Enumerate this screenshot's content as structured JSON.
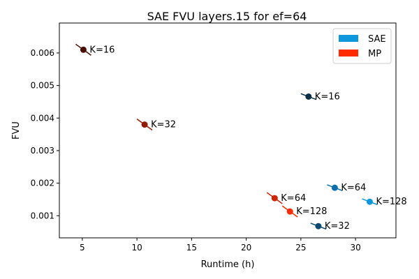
{
  "chart_data": {
    "type": "scatter",
    "title": "SAE FVU layers.15 for ef=64",
    "xlabel": "Runtime (h)",
    "ylabel": "FVU",
    "xlim": [
      2.9,
      33.7
    ],
    "ylim": [
      0.00032,
      0.00692
    ],
    "xticks": [
      5,
      10,
      15,
      20,
      25,
      30
    ],
    "xtick_labels": [
      "5",
      "10",
      "15",
      "20",
      "25",
      "30"
    ],
    "yticks": [
      0.001,
      0.002,
      0.003,
      0.004,
      0.005,
      0.006
    ],
    "ytick_labels": [
      "0.001",
      "0.002",
      "0.003",
      "0.004",
      "0.005",
      "0.006"
    ],
    "grid": false,
    "legend": {
      "position": "top-right",
      "entries": [
        {
          "label": "SAE",
          "color": "#0f97dd"
        },
        {
          "label": "MP",
          "color": "#ff2a00"
        }
      ]
    },
    "series": [
      {
        "name": "SAE",
        "points": [
          {
            "label": "K=16",
            "x": 25.7,
            "y": 0.00466,
            "color": "#082f46"
          },
          {
            "label": "K=32",
            "x": 26.6,
            "y": 0.00068,
            "color": "#0e4a70"
          },
          {
            "label": "K=64",
            "x": 28.1,
            "y": 0.00186,
            "color": "#0a70ae"
          },
          {
            "label": "K=128",
            "x": 31.3,
            "y": 0.00143,
            "color": "#0f97dd"
          }
        ]
      },
      {
        "name": "MP",
        "points": [
          {
            "label": "K=16",
            "x": 5.1,
            "y": 0.0061,
            "color": "#4a0e00"
          },
          {
            "label": "K=32",
            "x": 10.7,
            "y": 0.0038,
            "color": "#951b00"
          },
          {
            "label": "K=64",
            "x": 22.6,
            "y": 0.00154,
            "color": "#cd2502"
          },
          {
            "label": "K=128",
            "x": 24.0,
            "y": 0.00113,
            "color": "#ff2a00"
          }
        ]
      }
    ]
  }
}
